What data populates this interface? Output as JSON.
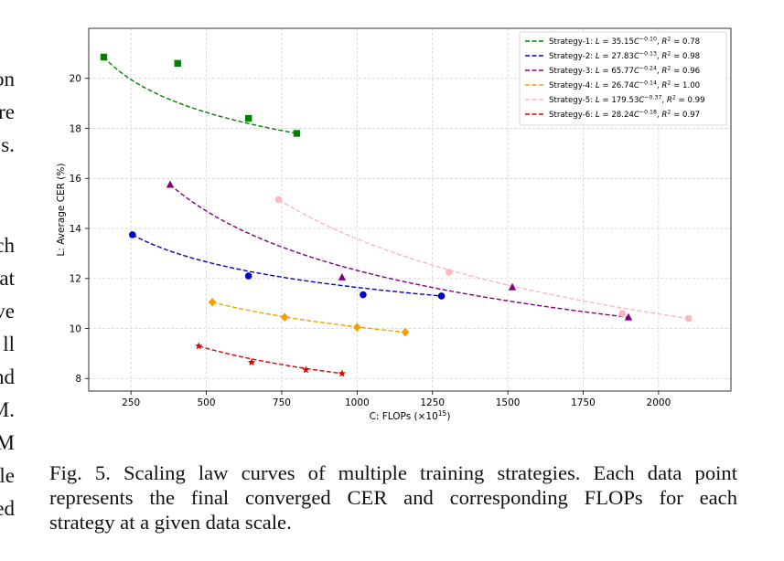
{
  "left_text_fragments": [
    "on",
    "re",
    "s.",
    "ch",
    "at",
    "ve",
    "ll",
    "nd",
    "M.",
    "M",
    "le",
    "ed"
  ],
  "caption": {
    "lines": [
      "Fig. 5.  Scaling law curves of multiple training strategies. Each data point",
      "represents the final converged CER and corresponding FLOPs for each",
      "strategy at a given data scale."
    ]
  },
  "chart_data": {
    "type": "scatter",
    "xlabel": "C: FLOPs (×10",
    "xlabel_sup": "15",
    "xlabel_close": ")",
    "ylabel": "L: Average CER (%)",
    "xlim": [
      110,
      2240
    ],
    "ylim": [
      7.5,
      22.0
    ],
    "xticks": [
      250,
      500,
      750,
      1000,
      1250,
      1500,
      1750,
      2000
    ],
    "yticks": [
      8,
      10,
      12,
      14,
      16,
      18,
      20
    ],
    "grid": true,
    "grid_style": "dashed",
    "legend_position": "top-right",
    "series": [
      {
        "name": "Strategy-1: L = 35.15C^-0.10, R^2 = 0.78",
        "legend_label": "Strategy-1: ",
        "coef": 35.15,
        "exp": -0.1,
        "r2_text": "0.78",
        "color": "#008000",
        "marker": "square",
        "x": [
          160,
          405,
          640,
          800
        ],
        "y": [
          20.85,
          20.6,
          18.4,
          17.8
        ],
        "fit_range": [
          160,
          800
        ]
      },
      {
        "name": "Strategy-2: L = 27.83C^-0.13, R^2 = 0.98",
        "legend_label": "Strategy-2: ",
        "coef": 27.83,
        "exp": -0.13,
        "r2_text": "0.98",
        "color": "#0000cc",
        "marker": "circle",
        "x": [
          255,
          640,
          1020,
          1280
        ],
        "y": [
          13.75,
          12.1,
          11.35,
          11.3
        ],
        "fit_range": [
          255,
          1280
        ]
      },
      {
        "name": "Strategy-3: L = 65.77C^-0.24, R^2 = 0.96",
        "legend_label": "Strategy-3: ",
        "coef": 65.77,
        "exp": -0.24,
        "r2_text": "0.96",
        "color": "#800080",
        "marker": "triangle",
        "x": [
          380,
          950,
          1515,
          1900
        ],
        "y": [
          15.75,
          12.05,
          11.65,
          10.45
        ],
        "fit_range": [
          380,
          1900
        ]
      },
      {
        "name": "Strategy-4: L = 26.74C^-0.14, R^2 = 1.00",
        "legend_label": "Strategy-4: ",
        "coef": 26.74,
        "exp": -0.14,
        "r2_text": "1.00",
        "color": "#f0a000",
        "marker": "diamond",
        "x": [
          520,
          760,
          1000,
          1160
        ],
        "y": [
          11.05,
          10.45,
          10.05,
          9.85
        ],
        "fit_range": [
          520,
          1160
        ]
      },
      {
        "name": "Strategy-5: L = 179.53C^-0.37, R^2 = 0.99",
        "legend_label": "Strategy-5: ",
        "coef": 179.53,
        "exp": -0.37,
        "r2_text": "0.99",
        "color": "#ffb6c1",
        "marker": "circle",
        "x": [
          740,
          1305,
          1880,
          2100
        ],
        "y": [
          15.15,
          12.25,
          10.6,
          10.4
        ],
        "fit_range": [
          740,
          2100
        ]
      },
      {
        "name": "Strategy-6: L = 28.24C^-0.18, R^2 = 0.97",
        "legend_label": "Strategy-6: ",
        "coef": 28.24,
        "exp": -0.18,
        "r2_text": "0.97",
        "color": "#dd0000",
        "marker": "star",
        "x": [
          475,
          650,
          830,
          950
        ],
        "y": [
          9.3,
          8.65,
          8.35,
          8.2
        ],
        "fit_range": [
          475,
          950
        ]
      }
    ]
  }
}
